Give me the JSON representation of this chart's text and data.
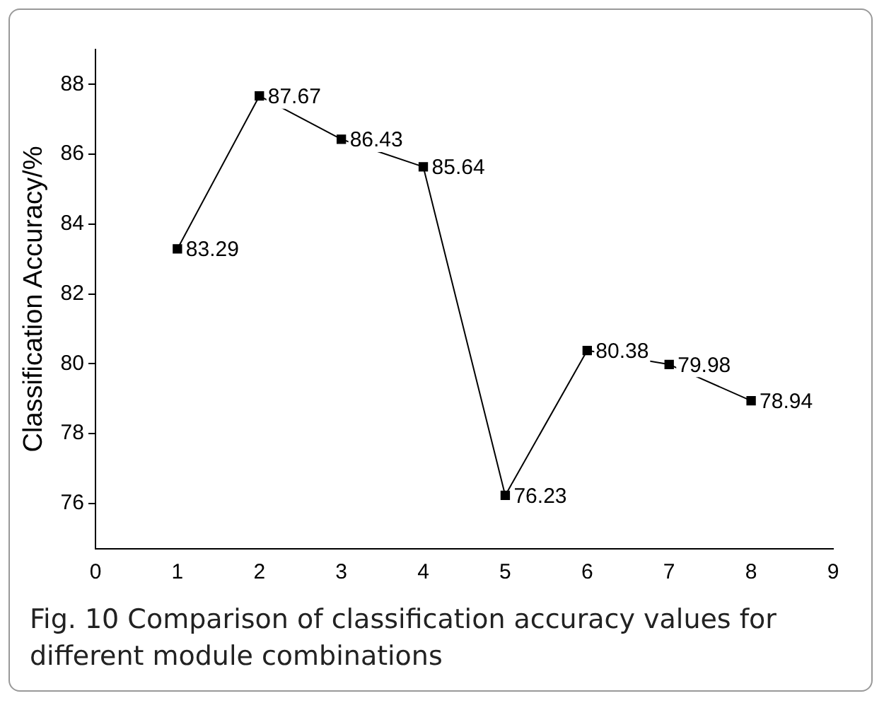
{
  "chart_data": {
    "type": "line",
    "ylabel": "Classification Accuracy/%",
    "x": [
      1,
      2,
      3,
      4,
      5,
      6,
      7,
      8
    ],
    "series": [
      {
        "color": "#000000",
        "values": [
          83.29,
          87.67,
          86.43,
          85.64,
          76.23,
          80.38,
          79.98,
          78.94
        ]
      }
    ],
    "xlim": [
      0,
      9
    ],
    "xticks": [
      0,
      1,
      2,
      3,
      4,
      5,
      6,
      7,
      8,
      9
    ],
    "ylim": [
      74.7,
      89
    ],
    "yticks": [
      76,
      78,
      80,
      82,
      84,
      86,
      88
    ],
    "grid": false,
    "legend": false,
    "marker": "square",
    "line_style": "solid",
    "data_labels": true,
    "annotations": [
      "Fig. 10 Comparison of classification accuracy values for different module combinations"
    ]
  }
}
